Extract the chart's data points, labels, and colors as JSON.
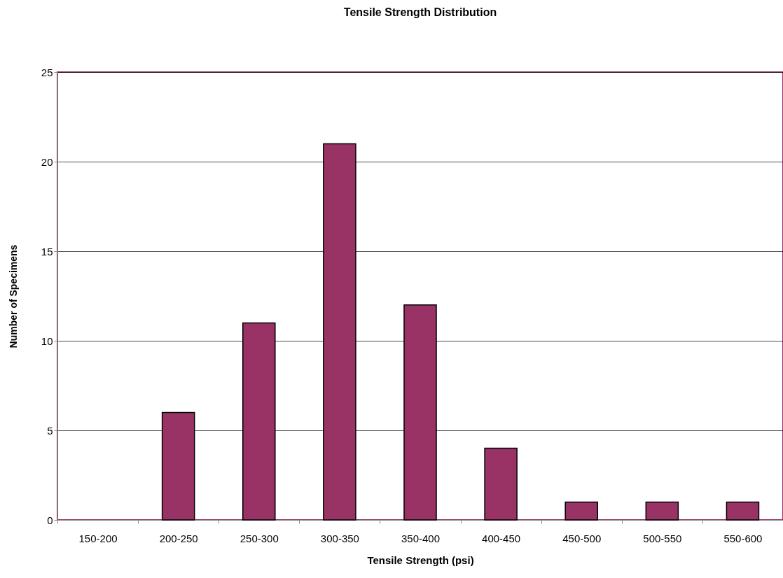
{
  "chart_data": {
    "type": "bar",
    "title": "Tensile Strength Distribution",
    "xlabel": "Tensile Strength (psi)",
    "ylabel": "Number of Specimens",
    "categories": [
      "150-200",
      "200-250",
      "250-300",
      "300-350",
      "350-400",
      "400-450",
      "450-500",
      "500-550",
      "550-600"
    ],
    "values": [
      0,
      6,
      11,
      21,
      12,
      4,
      1,
      1,
      1
    ],
    "color": "#993366",
    "ylim": [
      0,
      25
    ],
    "yticks": [
      0,
      5,
      10,
      15,
      20,
      25
    ],
    "grid": "y"
  }
}
